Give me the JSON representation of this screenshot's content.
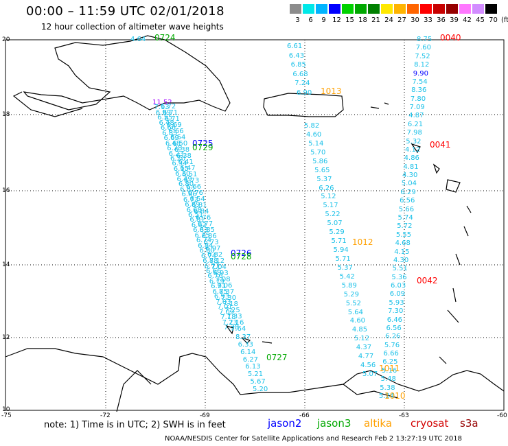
{
  "header": {
    "title": "00:00 – 11:59 UTC 02/01/2018",
    "subtitle": "12 hour collection of altimeter wave heights"
  },
  "color_scale": {
    "labels": [
      "3",
      "6",
      "9",
      "12",
      "15",
      "18",
      "21",
      "24",
      "27",
      "30",
      "33",
      "36",
      "39",
      "42",
      "45",
      "70",
      "(ft)"
    ],
    "colors": [
      "#8c8c8c",
      "#00e8e8",
      "#00b4ff",
      "#0000ff",
      "#00d200",
      "#00a800",
      "#008000",
      "#ffe800",
      "#ffb400",
      "#ff6400",
      "#ff0000",
      "#c80000",
      "#960000",
      "#ff78ff",
      "#d28cff",
      "#000000"
    ]
  },
  "axes": {
    "lat_labels": [
      "20",
      "18",
      "16",
      "14",
      "12",
      "10"
    ],
    "lon_labels": [
      "-75",
      "-72",
      "-69",
      "-66",
      "-63",
      "-60"
    ]
  },
  "tracks": [
    {
      "values": [
        "4.64"
      ],
      "time": "0724",
      "time_color": "#00a800"
    },
    {
      "values": [
        "11.52",
        "7.13",
        "6.99",
        "6.55",
        "6.48",
        "6.66",
        "6.85",
        "6.69",
        "6.48",
        "6.28",
        "6.23",
        "6.20",
        "6.34",
        "6.15",
        "6.30",
        "6.49",
        "6.80",
        "6.82",
        "6.86",
        "6.73",
        "6.89",
        "6.68",
        "6.51",
        "6.81",
        "6.62",
        "6.83",
        "6.75",
        "6.74",
        "6.84",
        "6.80",
        "6.74",
        "6.88",
        "6.77",
        "6.66",
        "6.76",
        "6.79",
        "6.91",
        "6.85",
        "6.93",
        "7.03",
        "7.01",
        "7.09",
        "7.18",
        "7.23",
        "7.38"
      ],
      "time": "0725",
      "time_color": "#0000ff"
    },
    {
      "values": [
        "6.72",
        "6.71",
        "6.71",
        "6.69",
        "6.66",
        "6.54",
        "6.50",
        "6.38",
        "6.38",
        "6.41",
        "6.47",
        "6.51",
        "6.73",
        "6.66",
        "6.76",
        "6.54",
        "6.81",
        "6.84",
        "6.76",
        "6.77",
        "6.85",
        "6.86",
        "6.73",
        "6.97",
        "6.82",
        "7.12",
        "7.04",
        "6.93",
        "7.08",
        "7.06",
        "7.37",
        "7.30",
        "7.18",
        "7.25",
        "7.33",
        "7.16",
        "7.64"
      ],
      "time": "0729",
      "time_color": "#00a800"
    },
    {
      "values": [
        "8.37",
        "6.33",
        "6.14",
        "6.27",
        "6.13",
        "5.21",
        "5.67",
        "5.20"
      ],
      "time": "0727",
      "time_color": "#00a800"
    },
    {
      "values": [
        "6.61",
        "6.43",
        "6.85",
        "6.68",
        "7.24",
        "6.90"
      ],
      "time": "1013",
      "time_color": "#ffa000"
    },
    {
      "values": [
        "5.82",
        "4.60",
        "5.14",
        "5.70",
        "5.86",
        "5.65",
        "5.37",
        "6.26",
        "5.12",
        "5.17",
        "5.22",
        "5.07",
        "5.29",
        "5.71",
        "5.94",
        "5.71",
        "5.37",
        "5.42",
        "5.89",
        "5.29",
        "5.52",
        "5.64",
        "4.60",
        "4.85",
        "5.12",
        "4.37",
        "4.77",
        "4.56",
        "5.07"
      ],
      "time": "1012",
      "time_color": "#ffa000"
    },
    {
      "values": [
        "8.75",
        "7.60",
        "7.52",
        "8.12",
        "9.90",
        "7.54",
        "8.36",
        "7.80",
        "7.09",
        "4.87",
        "6.21",
        "7.98",
        "5.32",
        "4.12",
        "4.86",
        "4.81",
        "4.30",
        "5.04",
        "6.29",
        "6.56",
        "5.66",
        "5.74",
        "5.72",
        "5.55",
        "4.68",
        "4.15",
        "4.30",
        "5.51",
        "5.36",
        "6.03",
        "6.09",
        "5.93",
        "7.30",
        "6.46",
        "6.56",
        "6.26",
        "5.76",
        "6.66",
        "6.25",
        "5.16",
        "5.48",
        "5.38",
        "5.24"
      ],
      "time": "0040",
      "time_color": "#ff0000"
    },
    {
      "values": [],
      "time": "0041",
      "time_color": "#ff0000"
    },
    {
      "values": [],
      "time": "0042",
      "time_color": "#ff0000"
    },
    {
      "values": [],
      "time": "1011",
      "time_color": "#ffa000"
    },
    {
      "values": [],
      "time": "1010",
      "time_color": "#ffa000"
    },
    {
      "values": [],
      "time": "0726",
      "time_color": "#0000ff"
    },
    {
      "values": [],
      "time": "0728",
      "time_color": "#00a800"
    }
  ],
  "note": "note:  1) Time is in UTC;  2) SWH is in feet",
  "satellites": [
    {
      "name": "jason2",
      "color": "#0000ff"
    },
    {
      "name": "jason3",
      "color": "#00a800"
    },
    {
      "name": "altika",
      "color": "#ffa000"
    },
    {
      "name": "cryosat",
      "color": "#d20000"
    },
    {
      "name": "s3a",
      "color": "#960000"
    }
  ],
  "footer": "NOAA/NESDIS Center for Satellite Applications and Research    Feb  2 13:27:19 UTC 2018"
}
